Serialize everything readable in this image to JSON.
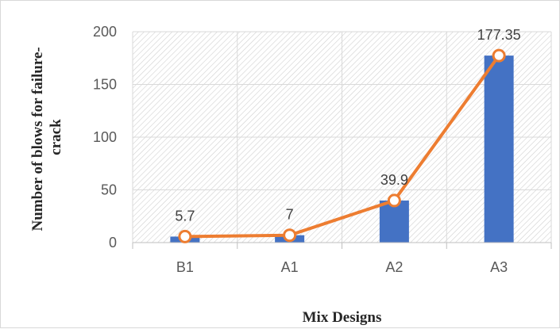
{
  "chart_data": {
    "type": "bar",
    "categories": [
      "B1",
      "A1",
      "A2",
      "A3"
    ],
    "values": [
      5.7,
      7,
      39.9,
      177.35
    ],
    "data_labels": [
      "5.7",
      "7",
      "39.9",
      "177.35"
    ],
    "overlay_line": {
      "type": "line",
      "values": [
        5.7,
        7,
        39.9,
        177.35
      ],
      "marker": "circle"
    },
    "title": "",
    "xlabel": "Mix Designs",
    "ylabel_lines": [
      "Number of blows for failure-",
      "crack"
    ],
    "ylim": [
      0,
      200
    ],
    "yticks": [
      0,
      50,
      100,
      150,
      200
    ],
    "grid": true,
    "plot_background": "diagonal-hatch",
    "legend": "none",
    "colors": {
      "bar": "#4472C4",
      "line": "#ED7D31",
      "marker_fill": "#FFFFFF",
      "grid": "#D9D9D9",
      "hatch": "#D0D0D0"
    }
  }
}
